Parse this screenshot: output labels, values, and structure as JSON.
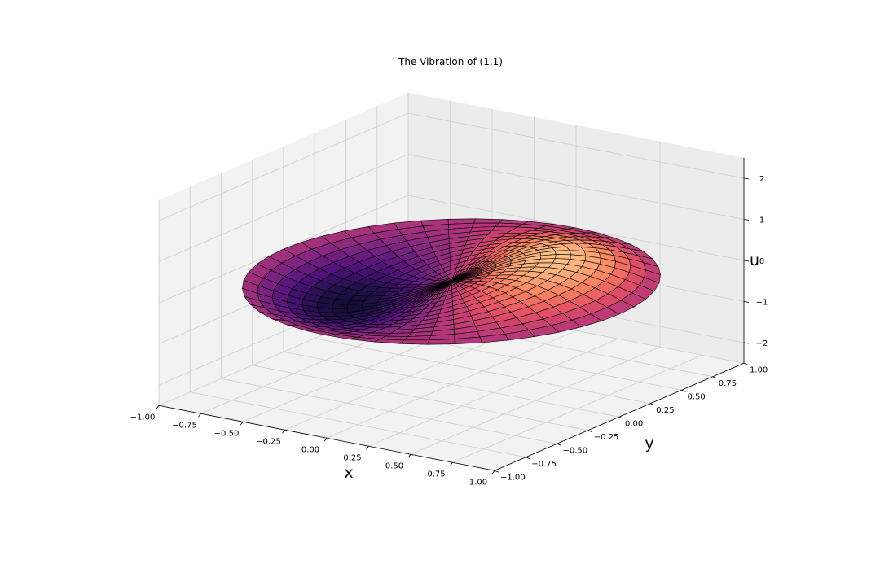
{
  "chart_data": {
    "type": "surface3d",
    "title": "The Vibration of (1,1)",
    "xlabel": "x",
    "ylabel": "y",
    "zlabel": "u",
    "xlim": [
      -1.0,
      1.0
    ],
    "ylim": [
      -1.0,
      1.0
    ],
    "zlim": [
      -2.5,
      2.5
    ],
    "x_ticks": [
      "−1.00",
      "−0.75",
      "−0.50",
      "−0.25",
      "0.00",
      "0.25",
      "0.50",
      "0.75",
      "1.00"
    ],
    "y_ticks": [
      "−1.00",
      "−0.75",
      "−0.50",
      "−0.25",
      "0.00",
      "0.25",
      "0.50",
      "0.75",
      "1.00"
    ],
    "z_ticks": [
      "−2",
      "−1",
      "0",
      "1",
      "2"
    ],
    "x_tick_values": [
      -1,
      -0.75,
      -0.5,
      -0.25,
      0,
      0.25,
      0.5,
      0.75,
      1
    ],
    "y_tick_values": [
      -1,
      -0.75,
      -0.5,
      -0.25,
      0,
      0.25,
      0.5,
      0.75,
      1
    ],
    "z_tick_values": [
      -2,
      -1,
      0,
      1,
      2
    ],
    "surface": {
      "domain": "unit disk r ≤ 1, θ ∈ [0, 2π]",
      "mode": "(1,1)",
      "u_min": -0.58,
      "u_max": 0.58,
      "colormap": "magma",
      "edgecolor": "#000000"
    },
    "grid": true
  }
}
